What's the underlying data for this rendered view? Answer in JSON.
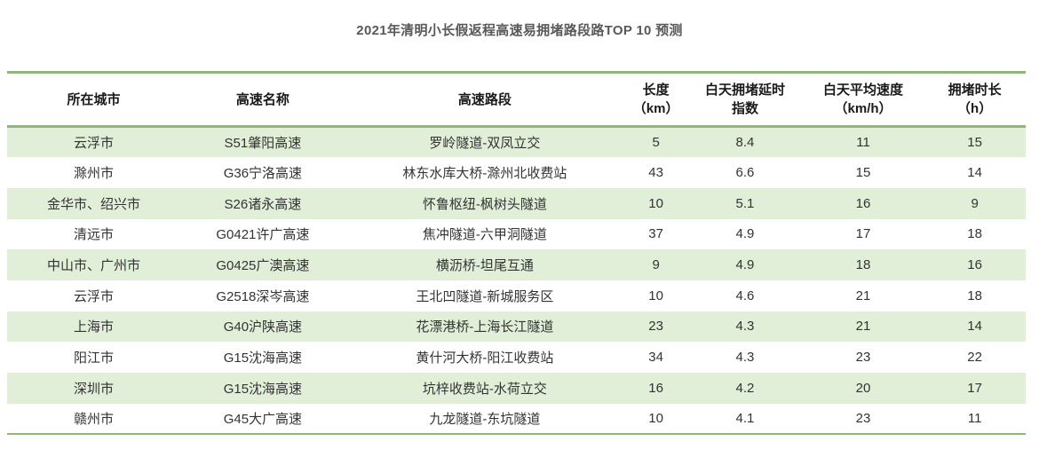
{
  "title": "2021年清明小长假返程高速易拥堵路段路TOP 10 预测",
  "colors": {
    "accent_green_line": "#8cba76",
    "row_stripe_green": "#e1efd9",
    "title_gray": "#595959",
    "cell_text": "#333333"
  },
  "table": {
    "columns": [
      {
        "line1": "所在城市",
        "line2": ""
      },
      {
        "line1": "高速名称",
        "line2": ""
      },
      {
        "line1": "高速路段",
        "line2": ""
      },
      {
        "line1": "长度",
        "line2": "（km）"
      },
      {
        "line1": "白天拥堵延时",
        "line2": "指数"
      },
      {
        "line1": "白天平均速度",
        "line2": "（km/h）"
      },
      {
        "line1": "拥堵时长",
        "line2": "（h）"
      }
    ],
    "rows": [
      [
        "云浮市",
        "S51肇阳高速",
        "罗岭隧道-双凤立交",
        "5",
        "8.4",
        "11",
        "15"
      ],
      [
        "滁州市",
        "G36宁洛高速",
        "林东水库大桥-滁州北收费站",
        "43",
        "6.6",
        "15",
        "14"
      ],
      [
        "金华市、绍兴市",
        "S26诸永高速",
        "怀鲁枢纽-枫树头隧道",
        "10",
        "5.1",
        "16",
        "9"
      ],
      [
        "清远市",
        "G0421许广高速",
        "焦冲隧道-六甲洞隧道",
        "37",
        "4.9",
        "17",
        "18"
      ],
      [
        "中山市、广州市",
        "G0425广澳高速",
        "横沥桥-坦尾互通",
        "9",
        "4.9",
        "18",
        "16"
      ],
      [
        "云浮市",
        "G2518深岑高速",
        "王北凹隧道-新城服务区",
        "10",
        "4.6",
        "21",
        "18"
      ],
      [
        "上海市",
        "G40沪陕高速",
        "花漂港桥-上海长江隧道",
        "23",
        "4.3",
        "21",
        "14"
      ],
      [
        "阳江市",
        "G15沈海高速",
        "黄什河大桥-阳江收费站",
        "34",
        "4.3",
        "23",
        "22"
      ],
      [
        "深圳市",
        "G15沈海高速",
        "坑梓收费站-水荷立交",
        "16",
        "4.2",
        "20",
        "17"
      ],
      [
        "赣州市",
        "G45大广高速",
        "九龙隧道-东坑隧道",
        "10",
        "4.1",
        "23",
        "11"
      ]
    ]
  }
}
